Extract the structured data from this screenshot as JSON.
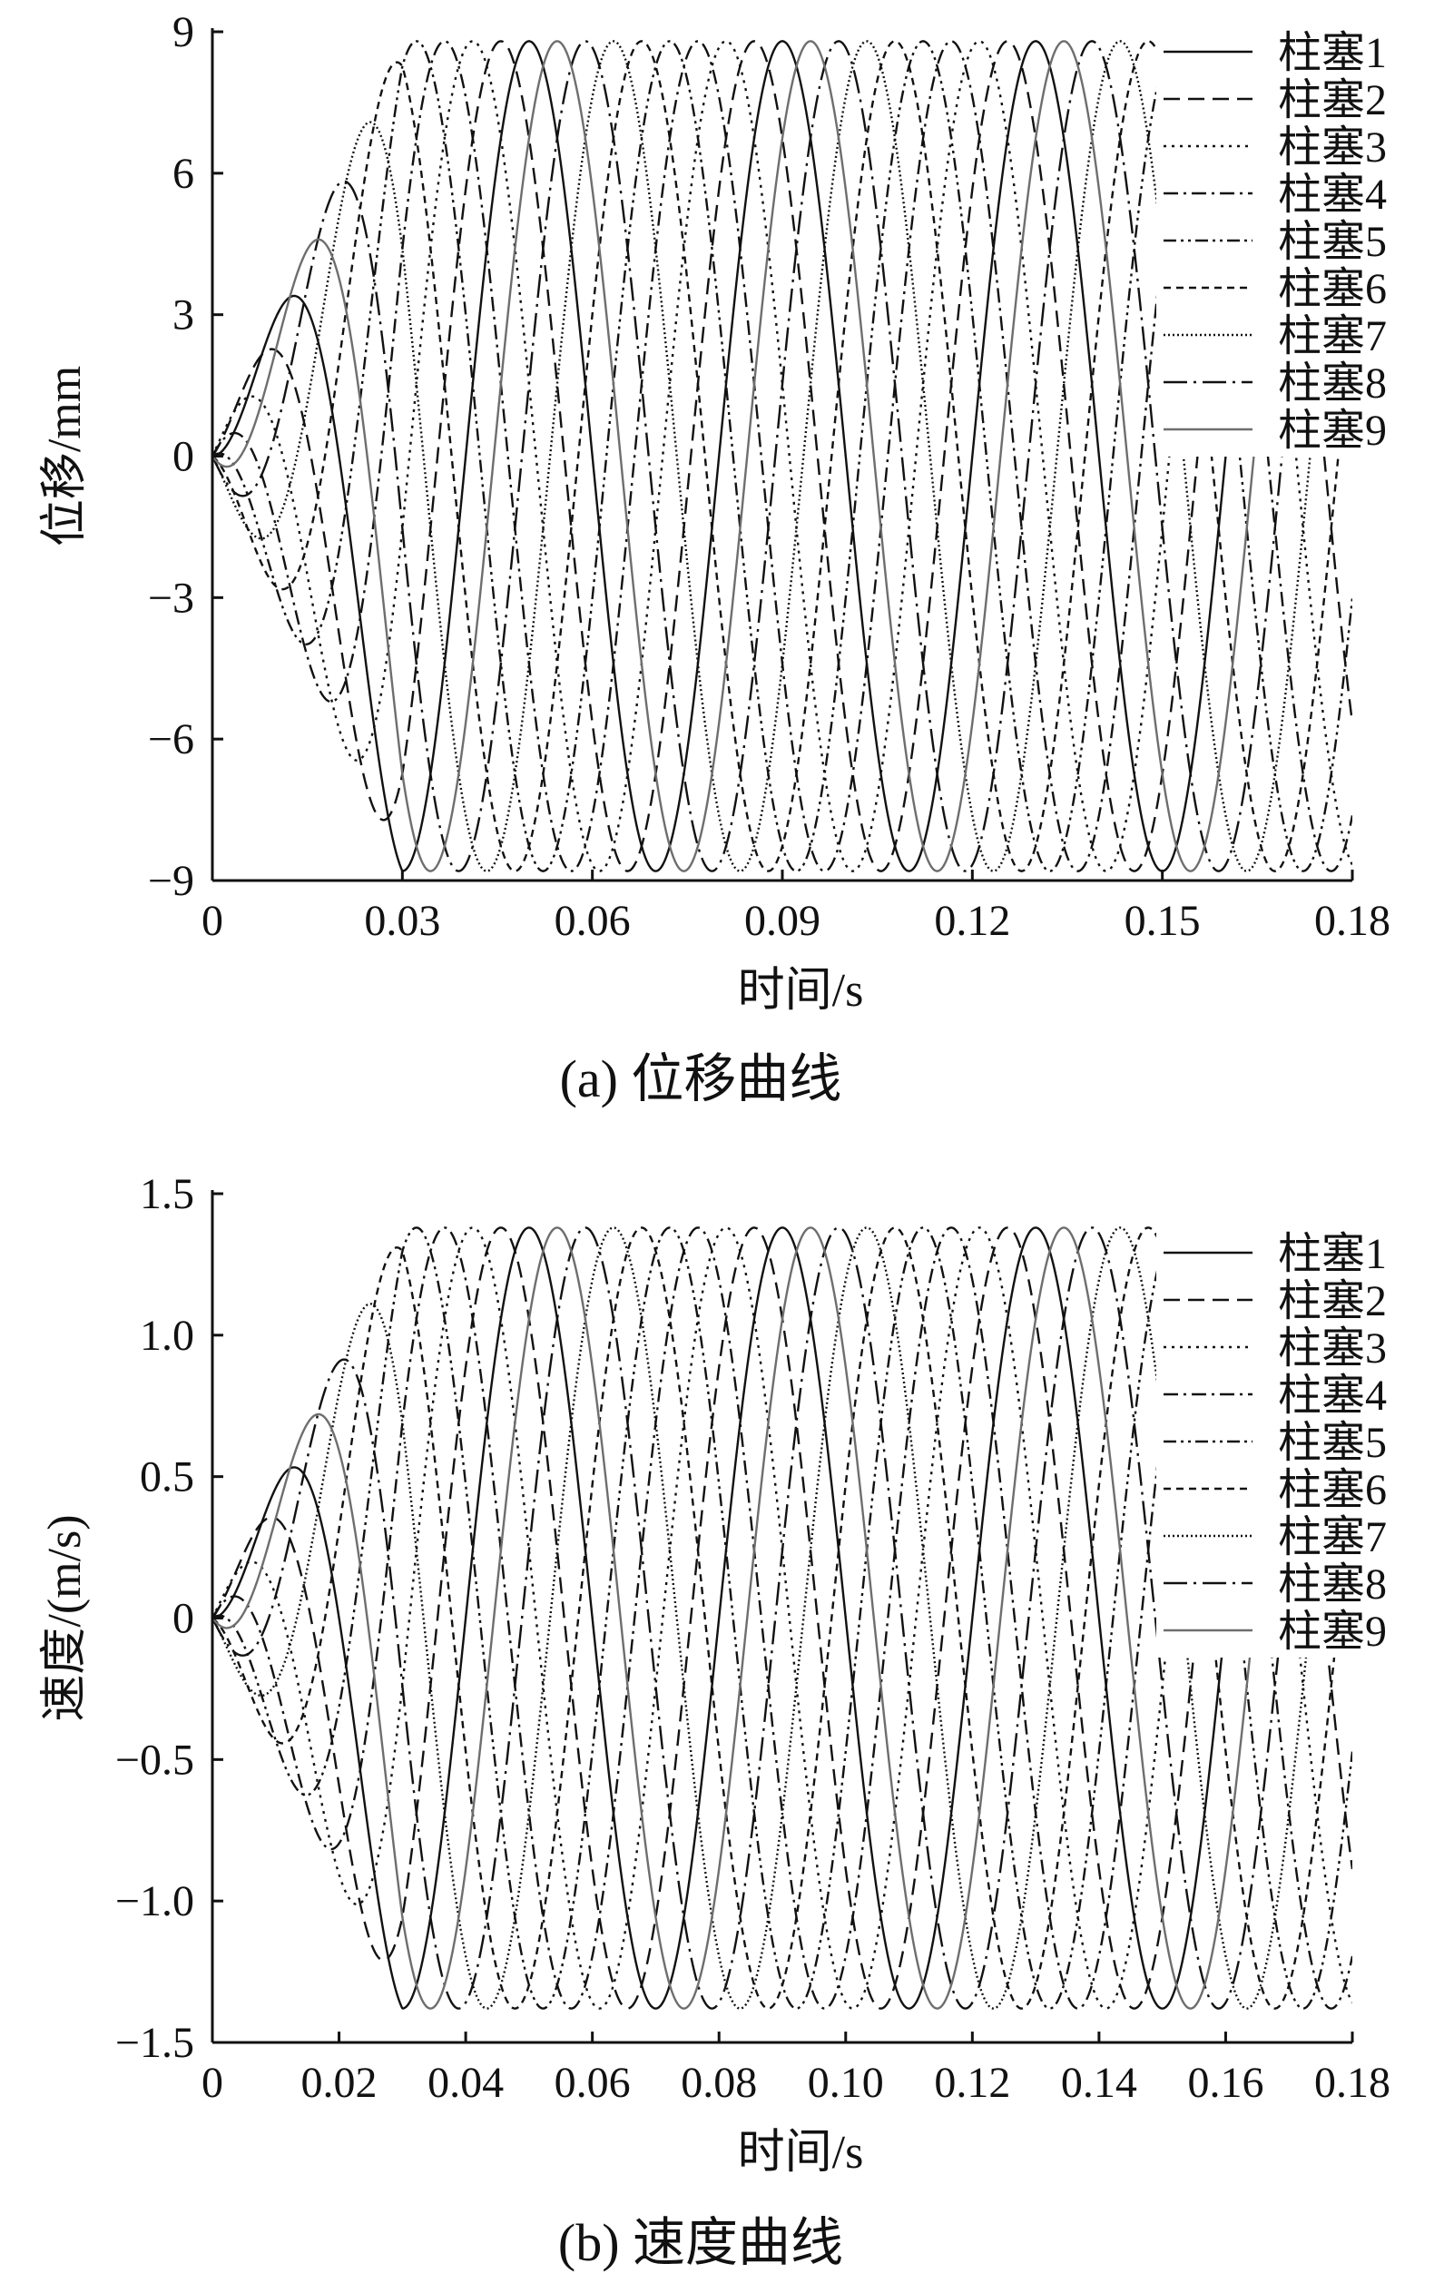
{
  "chart_data": [
    {
      "type": "line",
      "caption": "(a)  位移曲线",
      "xlabel": "时间/s",
      "ylabel": "位移/mm",
      "xlim": [
        0,
        0.18
      ],
      "ylim": [
        -9,
        9
      ],
      "xticks": [
        0,
        0.03,
        0.06,
        0.09,
        0.12,
        0.15,
        0.18
      ],
      "xtick_labels": [
        "0",
        "0.03",
        "0.06",
        "0.09",
        "0.12",
        "0.15",
        "0.18"
      ],
      "yticks": [
        9,
        6,
        3,
        0,
        -3,
        -6,
        -9
      ],
      "ytick_labels": [
        "9",
        "6",
        "3",
        "0",
        "−3",
        "−6",
        "−9"
      ],
      "grid": false,
      "legend_position": "top-right",
      "model": {
        "form": "y = A * r(t) * sin(2*pi*f*t + phase)",
        "amplitude": 8.8,
        "frequency_hz": 25,
        "ramp_end_s": 0.03
      },
      "series": [
        {
          "name": "柱塞1",
          "style": "solid",
          "color": "#111111",
          "phase_deg": 0
        },
        {
          "name": "柱塞2",
          "style": "dashed",
          "color": "#111111",
          "phase_deg": 40
        },
        {
          "name": "柱塞3",
          "style": "dotted",
          "color": "#111111",
          "phase_deg": 80
        },
        {
          "name": "柱塞4",
          "style": "dashdot",
          "color": "#111111",
          "phase_deg": 120
        },
        {
          "name": "柱塞5",
          "style": "dashdotdot",
          "color": "#111111",
          "phase_deg": 160
        },
        {
          "name": "柱塞6",
          "style": "shortdash",
          "color": "#111111",
          "phase_deg": 200
        },
        {
          "name": "柱塞7",
          "style": "finedot",
          "color": "#111111",
          "phase_deg": 240
        },
        {
          "name": "柱塞8",
          "style": "longdashdot",
          "color": "#111111",
          "phase_deg": 280
        },
        {
          "name": "柱塞9",
          "style": "solid",
          "color": "#6e6e6e",
          "phase_deg": 320
        }
      ]
    },
    {
      "type": "line",
      "caption": "(b)  速度曲线",
      "xlabel": "时间/s",
      "ylabel": "速度/(m/s)",
      "xlim": [
        0,
        0.18
      ],
      "ylim": [
        -1.5,
        1.5
      ],
      "xticks": [
        0,
        0.02,
        0.04,
        0.06,
        0.08,
        0.1,
        0.12,
        0.14,
        0.16,
        0.18
      ],
      "xtick_labels": [
        "0",
        "0.02",
        "0.04",
        "0.06",
        "0.08",
        "0.10",
        "0.12",
        "0.14",
        "0.16",
        "0.18"
      ],
      "yticks": [
        1.5,
        1.0,
        0.5,
        0,
        -0.5,
        -1.0,
        -1.5
      ],
      "ytick_labels": [
        "1.5",
        "1.0",
        "0.5",
        "0",
        "−0.5",
        "−1.0",
        "−1.5"
      ],
      "grid": false,
      "legend_position": "top-right",
      "model": {
        "form": "y = A * r(t) * sin(2*pi*f*t + phase)",
        "amplitude": 1.38,
        "frequency_hz": 25,
        "ramp_end_s": 0.03
      },
      "series": [
        {
          "name": "柱塞1",
          "style": "solid",
          "color": "#111111",
          "phase_deg": 0
        },
        {
          "name": "柱塞2",
          "style": "dashed",
          "color": "#111111",
          "phase_deg": 40
        },
        {
          "name": "柱塞3",
          "style": "dotted",
          "color": "#111111",
          "phase_deg": 80
        },
        {
          "name": "柱塞4",
          "style": "dashdot",
          "color": "#111111",
          "phase_deg": 120
        },
        {
          "name": "柱塞5",
          "style": "dashdotdot",
          "color": "#111111",
          "phase_deg": 160
        },
        {
          "name": "柱塞6",
          "style": "shortdash",
          "color": "#111111",
          "phase_deg": 200
        },
        {
          "name": "柱塞7",
          "style": "finedot",
          "color": "#111111",
          "phase_deg": 240
        },
        {
          "name": "柱塞8",
          "style": "longdashdot",
          "color": "#111111",
          "phase_deg": 280
        },
        {
          "name": "柱塞9",
          "style": "solid",
          "color": "#6e6e6e",
          "phase_deg": 320
        }
      ]
    }
  ]
}
